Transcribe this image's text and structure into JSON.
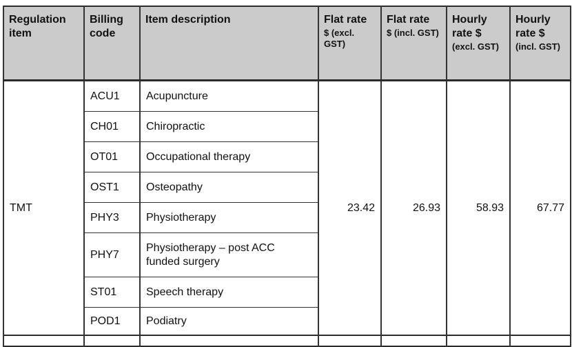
{
  "table": {
    "columns": [
      {
        "title": "Regulation item"
      },
      {
        "title": "Billing code"
      },
      {
        "title": "Item description"
      },
      {
        "title": "Flat rate",
        "sub": "$ (excl. GST)"
      },
      {
        "title": "Flat rate",
        "sub": "$ (incl. GST)"
      },
      {
        "title": "Hourly rate $",
        "sub": "(excl. GST)"
      },
      {
        "title": "Hourly rate $",
        "sub": "(incl. GST)"
      }
    ],
    "group": {
      "regulation_item": "TMT",
      "rows": [
        {
          "code": "ACU1",
          "description": "Acupuncture"
        },
        {
          "code": "CH01",
          "description": "Chiropractic"
        },
        {
          "code": "OT01",
          "description": "Occupational therapy"
        },
        {
          "code": "OST1",
          "description": "Osteopathy"
        },
        {
          "code": "PHY3",
          "description": "Physiotherapy"
        },
        {
          "code": "PHY7",
          "description": "Physiotherapy – post ACC funded surgery"
        },
        {
          "code": "ST01",
          "description": "Speech therapy"
        },
        {
          "code": "POD1",
          "description": "Podiatry"
        }
      ],
      "rates": {
        "flat_excl_gst": "23.42",
        "flat_incl_gst": "26.93",
        "hourly_excl_gst": "58.93",
        "hourly_incl_gst": "67.77"
      }
    },
    "colors": {
      "header_bg": "#cbcbcb",
      "border": "#333333"
    }
  }
}
